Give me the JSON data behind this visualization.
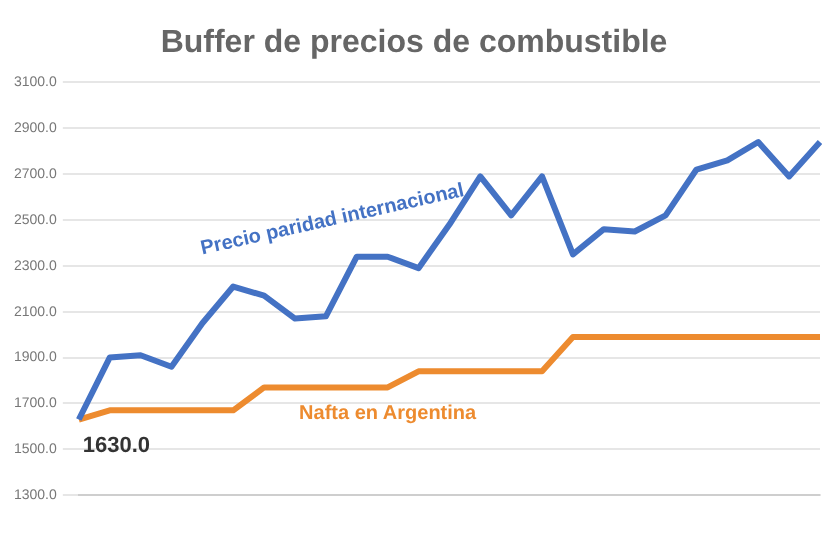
{
  "chart_data": {
    "type": "line",
    "title": "Buffer de precios de combustible",
    "categories": [
      null,
      null,
      null,
      null,
      null,
      null,
      null,
      null,
      null,
      null,
      null,
      null,
      null,
      null,
      null,
      null,
      null,
      null,
      null,
      null,
      null,
      null,
      null,
      null,
      null
    ],
    "series": [
      {
        "name": "Precio paridad internacional",
        "color": "#4472c4",
        "values": [
          1630,
          1900,
          1910,
          1860,
          2050,
          2210,
          2170,
          2070,
          2080,
          2340,
          2340,
          2290,
          2480,
          2690,
          2520,
          2690,
          2350,
          2460,
          2450,
          2520,
          2720,
          2760,
          2840,
          2690,
          2840
        ]
      },
      {
        "name": "Nafta en Argentina",
        "color": "#ed8b2f",
        "values": [
          1630,
          1670,
          1670,
          1670,
          1670,
          1670,
          1770,
          1770,
          1770,
          1770,
          1770,
          1840,
          1840,
          1840,
          1840,
          1840,
          1990,
          1990,
          1990,
          1990,
          1990,
          1990,
          1990,
          1990,
          1990
        ]
      }
    ],
    "ylim": [
      1300,
      3100
    ],
    "yticks": [
      {
        "value": 1300,
        "label": "1300.0"
      },
      {
        "value": 1500,
        "label": "1500.0"
      },
      {
        "value": 1700,
        "label": "1700.0"
      },
      {
        "value": 1900,
        "label": "1900.0"
      },
      {
        "value": 2100,
        "label": "2100.0"
      },
      {
        "value": 2300,
        "label": "2300.0"
      },
      {
        "value": 2500,
        "label": "2500.0"
      },
      {
        "value": 2700,
        "label": "2700.0"
      },
      {
        "value": 2900,
        "label": "2900.0"
      },
      {
        "value": 3100,
        "label": "3100.0"
      }
    ],
    "grid": "y",
    "legend": false,
    "marker": "none",
    "line_style": "solid",
    "annotations": [
      {
        "text": "1630.0",
        "y": 1630
      }
    ]
  }
}
